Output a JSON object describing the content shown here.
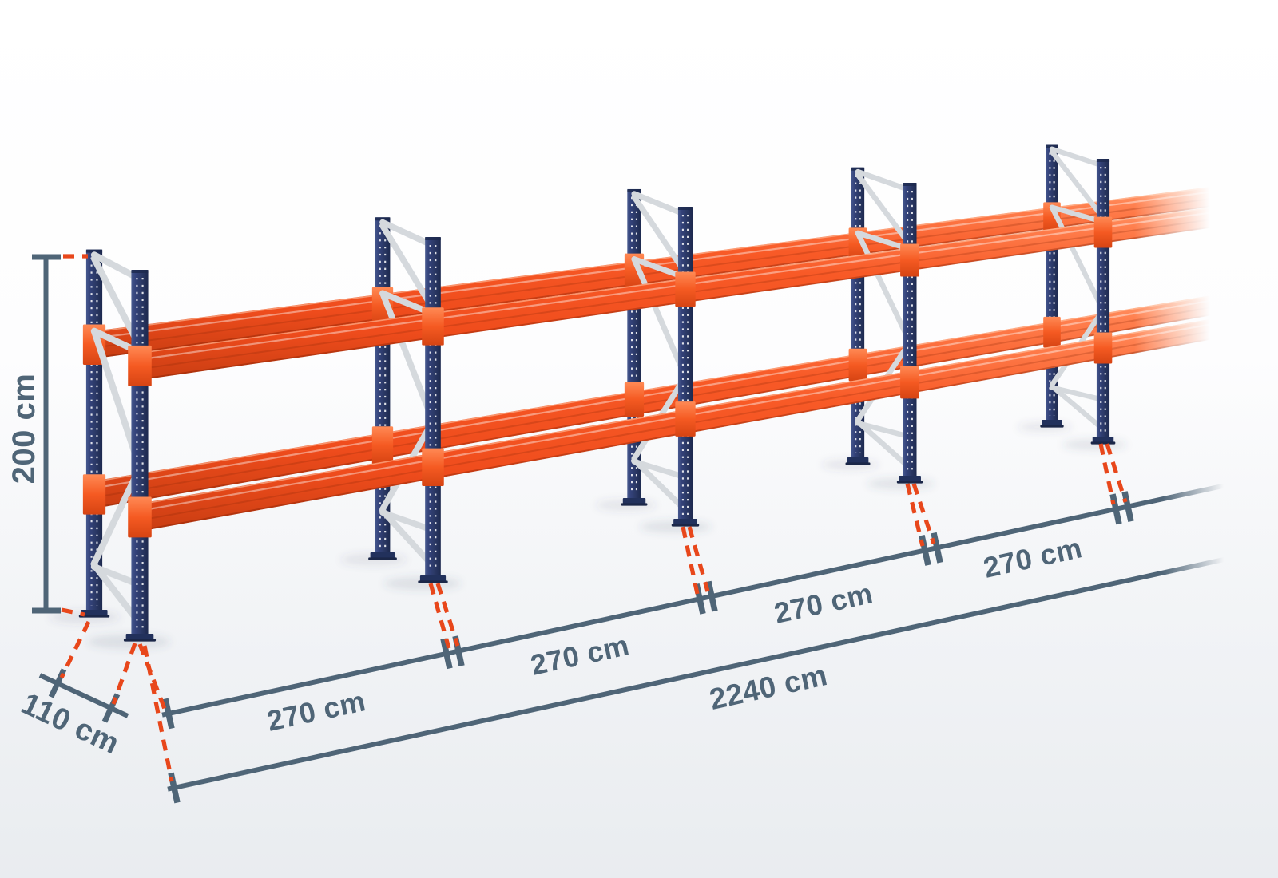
{
  "diagram": {
    "type": "pallet-racking-dimension-diagram",
    "rack": {
      "frames_visible": 5,
      "bays_visible": 4,
      "beam_levels": 2,
      "continues_right": true
    },
    "dimensions": {
      "height": {
        "label": "200 cm"
      },
      "depth": {
        "label": "110 cm"
      },
      "bays": [
        {
          "label": "270 cm"
        },
        {
          "label": "270 cm"
        },
        {
          "label": "270 cm"
        },
        {
          "label": "270 cm"
        }
      ],
      "total": {
        "label": "2240 cm"
      }
    },
    "colors": {
      "beam_orange": "#f85a27",
      "beam_orange_light": "#ff8150",
      "beam_orange_dark": "#c83d12",
      "upright_navy": "#2c3a68",
      "upright_navy_dark": "#1d294e",
      "brace_silver": "#d5d9dd",
      "connector_orange": "#f55a22",
      "dimension_slate": "#4f6577",
      "guide_dash_red": "#e8471b",
      "background": "#ffffff"
    }
  }
}
